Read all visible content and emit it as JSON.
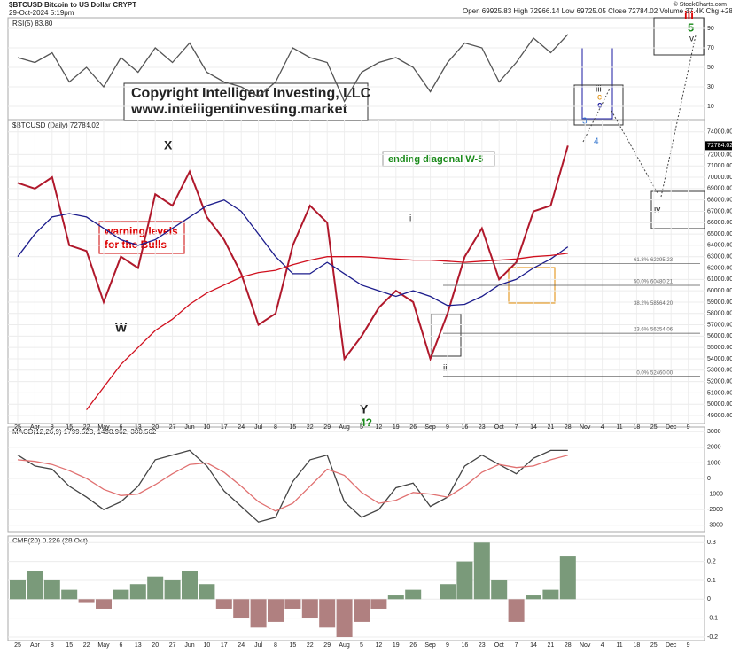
{
  "header": {
    "symbol": "$BTCUSD Bitcoin to US Dollar CRYPT",
    "timestamp": "29-Oct-2024 5:19pm",
    "ohlc": "Open 69925.83  High 72966.14  Low 69725.05  Close 72784.02  Volume 37.4K  Chg +2858.19 (+4.09%)",
    "brand": "© StockCharts.com"
  },
  "annotations": {
    "copyright": "Copyright Intelligent Investing, LLC",
    "website": "www.intelligentinvesting.market",
    "diagonal": "ending diagonal W-5",
    "warning_1": "warning levels",
    "warning_2": "for the Bulls",
    "W": "W",
    "X": "X",
    "Y": "Y",
    "wave4": "4?",
    "iii_red": "iii",
    "five": "5",
    "v": "v",
    "iii": "iii",
    "c": "c",
    "three": "3",
    "four": "4",
    "iv": "iv",
    "i": "i",
    "ii": "ii"
  },
  "chart_data": [
    {
      "type": "line",
      "title": "$BTCUSD (Daily) 72784.02",
      "close_label": "72784.02",
      "categories": [
        "25",
        "Apr",
        "8",
        "15",
        "22",
        "May",
        "6",
        "13",
        "20",
        "27",
        "Jun",
        "10",
        "17",
        "24",
        "Jul",
        "8",
        "15",
        "22",
        "29",
        "Aug",
        "5",
        "12",
        "19",
        "26",
        "Sep",
        "9",
        "16",
        "23",
        "Oct",
        "7",
        "14",
        "21",
        "28",
        "Nov",
        "4",
        "11",
        "18",
        "25",
        "Dec",
        "9"
      ],
      "ylim": [
        48300,
        75000
      ],
      "yticks": [
        {
          "value": 49000,
          "label": "49000.00"
        },
        {
          "value": 50000,
          "label": "50000.00"
        },
        {
          "value": 51000,
          "label": "51000.00"
        },
        {
          "value": 52000,
          "label": "52000.00"
        },
        {
          "value": 53000,
          "label": "53000.00"
        },
        {
          "value": 54000,
          "label": "54000.00"
        },
        {
          "value": 55000,
          "label": "55000.00"
        },
        {
          "value": 56000,
          "label": "56000.00"
        },
        {
          "value": 57000,
          "label": "57000.00"
        },
        {
          "value": 58000,
          "label": "58000.00"
        },
        {
          "value": 59000,
          "label": "59000.00"
        },
        {
          "value": 60000,
          "label": "60000.00"
        },
        {
          "value": 61000,
          "label": "61000.00"
        },
        {
          "value": 62000,
          "label": "62000.00"
        },
        {
          "value": 63000,
          "label": "63000.00"
        },
        {
          "value": 64000,
          "label": "64000.00"
        },
        {
          "value": 65000,
          "label": "65000.00"
        },
        {
          "value": 66000,
          "label": "66000.00"
        },
        {
          "value": 67000,
          "label": "67000.00"
        },
        {
          "value": 68000,
          "label": "68000.00"
        },
        {
          "value": 69000,
          "label": "69000.00"
        },
        {
          "value": 70000,
          "label": "70000.00"
        },
        {
          "value": 71000,
          "label": "71000.00"
        },
        {
          "value": 72000,
          "label": "72000.00"
        },
        {
          "value": 74000,
          "label": "74000.00"
        }
      ],
      "grid": true,
      "series": [
        {
          "name": "$BTCUSD",
          "color": "#b0182b",
          "values": [
            69500,
            69000,
            70000,
            64000,
            63500,
            59000,
            63000,
            62000,
            68500,
            67500,
            70500,
            66500,
            64500,
            61500,
            57000,
            58000,
            64000,
            67500,
            66000,
            54000,
            56000,
            58500,
            60000,
            59000,
            54000,
            58000,
            63000,
            65500,
            61000,
            62500,
            67000,
            67500,
            72784.02,
            null,
            null,
            null,
            null,
            null,
            null,
            null
          ]
        },
        {
          "name": "MA(50) 63869.52",
          "color": "#1c1c8c",
          "values": [
            63000,
            65000,
            66500,
            66800,
            66500,
            65500,
            64500,
            64000,
            64500,
            65500,
            66500,
            67500,
            68000,
            67000,
            65000,
            63000,
            61500,
            61500,
            62500,
            61500,
            60500,
            60000,
            59500,
            60000,
            59500,
            58700,
            58800,
            59500,
            60500,
            61000,
            62000,
            62800,
            63869.52,
            null,
            null,
            null,
            null,
            null,
            null,
            null
          ]
        },
        {
          "name": "MA(200) 63294.40",
          "color": "#d0101e",
          "values": [
            null,
            null,
            null,
            null,
            49500,
            51500,
            53500,
            55000,
            56500,
            57500,
            58800,
            59800,
            60500,
            61200,
            61600,
            61800,
            62300,
            62700,
            63000,
            63000,
            63000,
            62900,
            62800,
            62700,
            62700,
            62600,
            62500,
            62600,
            62700,
            62800,
            63000,
            63100,
            63294.4,
            null,
            null,
            null,
            null,
            null,
            null,
            null
          ]
        }
      ],
      "fib_levels": [
        {
          "ratio": "61.8%",
          "value": 62395.23,
          "label": "62395.23"
        },
        {
          "ratio": "50.0%",
          "value": 60480.21,
          "label": "60480.21"
        },
        {
          "ratio": "38.2%",
          "value": 58564.2,
          "label": "58564.20"
        },
        {
          "ratio": "23.6%",
          "value": 56254.06,
          "label": "56254.06"
        },
        {
          "ratio": "0.0%",
          "value": 52460,
          "label": "52460.00"
        }
      ]
    },
    {
      "type": "line",
      "title": "RSI(5) 83.80",
      "ylim": [
        0,
        100
      ],
      "yticks": [
        10,
        30,
        50,
        70,
        90
      ],
      "series": [
        {
          "name": "RSI(5)",
          "color": "#555555",
          "values": [
            60,
            55,
            65,
            35,
            50,
            30,
            60,
            45,
            70,
            55,
            75,
            45,
            35,
            30,
            20,
            35,
            70,
            60,
            55,
            15,
            45,
            55,
            60,
            50,
            25,
            55,
            75,
            70,
            35,
            55,
            80,
            65,
            83.8,
            null,
            null,
            null,
            null,
            null,
            null,
            null
          ]
        }
      ]
    },
    {
      "type": "line",
      "title": "MACD(12,26,9) 1799.523, 1498.962, 300.562",
      "ylim": [
        -3300,
        3300
      ],
      "yticks": [
        -3000,
        -2000,
        -1000,
        0,
        1000,
        2000,
        3000
      ],
      "series": [
        {
          "name": "MACD",
          "color": "#444444",
          "values": [
            1500,
            800,
            600,
            -500,
            -1200,
            -2000,
            -1500,
            -500,
            1200,
            1500,
            1800,
            800,
            -800,
            -1800,
            -2800,
            -2500,
            -200,
            1200,
            1500,
            -1500,
            -2500,
            -2000,
            -600,
            -300,
            -1800,
            -1200,
            800,
            1500,
            900,
            300,
            1300,
            1800,
            1799.523,
            null,
            null,
            null,
            null,
            null,
            null,
            null
          ]
        },
        {
          "name": "Signal",
          "color": "#e07070",
          "values": [
            1200,
            1100,
            900,
            500,
            0,
            -700,
            -1100,
            -1000,
            -400,
            300,
            900,
            1000,
            400,
            -500,
            -1500,
            -2100,
            -1600,
            -500,
            600,
            200,
            -900,
            -1600,
            -1400,
            -900,
            -1000,
            -1200,
            -500,
            400,
            900,
            700,
            800,
            1200,
            1498.962,
            null,
            null,
            null,
            null,
            null,
            null,
            null
          ]
        }
      ]
    },
    {
      "type": "bar",
      "title": "CMF(20) 0.226 (28 Oct)",
      "ylim": [
        -0.2,
        0.32
      ],
      "yticks": [
        -0.2,
        -0.1,
        0,
        0.1,
        0.2,
        0.3
      ],
      "pos_color": "#7a9a7a",
      "neg_color": "#b08080",
      "values": [
        0.1,
        0.15,
        0.1,
        0.05,
        -0.02,
        -0.05,
        0.05,
        0.08,
        0.12,
        0.1,
        0.15,
        0.08,
        -0.05,
        -0.1,
        -0.15,
        -0.12,
        -0.05,
        -0.1,
        -0.15,
        -0.2,
        -0.12,
        -0.05,
        0.02,
        0.05,
        0,
        0.08,
        0.2,
        0.3,
        0.1,
        -0.12,
        0.02,
        0.05,
        0.226,
        null,
        null,
        null,
        null,
        null,
        null,
        null
      ]
    }
  ]
}
